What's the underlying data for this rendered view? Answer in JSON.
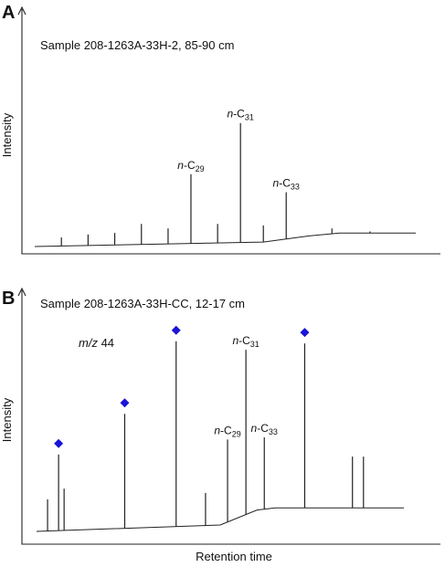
{
  "chart_data": [
    {
      "type": "line",
      "panel": "A",
      "title": "Sample 208-1263A-33H-2, 85-90 cm",
      "ylabel": "Intensity",
      "xlabel": "",
      "grid": false,
      "legend": "none",
      "x_scale": [
        0,
        100
      ],
      "y_scale": [
        0,
        100
      ],
      "peaks": [
        {
          "x": 7,
          "y": 6,
          "label": ""
        },
        {
          "x": 14,
          "y": 8,
          "label": ""
        },
        {
          "x": 21,
          "y": 9,
          "label": ""
        },
        {
          "x": 28,
          "y": 15,
          "label": ""
        },
        {
          "x": 35,
          "y": 12,
          "label": ""
        },
        {
          "x": 41,
          "y": 48,
          "label": "n-C29",
          "label_prefix": "n",
          "label_base": "-C",
          "label_sub": "29"
        },
        {
          "x": 48,
          "y": 15,
          "label": ""
        },
        {
          "x": 54,
          "y": 82,
          "label": "n-C31",
          "label_prefix": "n",
          "label_base": "-C",
          "label_sub": "31"
        },
        {
          "x": 60,
          "y": 14,
          "label": ""
        },
        {
          "x": 66,
          "y": 36,
          "label": "n-C33",
          "label_prefix": "n",
          "label_base": "-C",
          "label_sub": "33"
        },
        {
          "x": 78,
          "y": 12,
          "label": ""
        },
        {
          "x": 88,
          "y": 10,
          "label": ""
        }
      ],
      "baseline": [
        [
          0,
          0
        ],
        [
          60,
          3
        ],
        [
          72,
          7
        ],
        [
          80,
          9
        ],
        [
          100,
          9
        ]
      ]
    },
    {
      "type": "line",
      "panel": "B",
      "title": "Sample 208-1263A-33H-CC, 12-17 cm",
      "annotation": "m/z 44",
      "annotation_italic": "m/z",
      "annotation_rest": " 44",
      "ylabel": "Intensity",
      "xlabel": "Retention time",
      "grid": false,
      "legend": "none",
      "marker_color": "#1a14d6",
      "x_scale": [
        0,
        100
      ],
      "y_scale": [
        0,
        100
      ],
      "peaks": [
        {
          "x": 3,
          "y": 15,
          "label": ""
        },
        {
          "x": 6,
          "y": 36,
          "label": "",
          "marker": true
        },
        {
          "x": 7.5,
          "y": 20,
          "label": ""
        },
        {
          "x": 24,
          "y": 55,
          "label": "",
          "marker": true
        },
        {
          "x": 38,
          "y": 89,
          "label": "",
          "marker": true
        },
        {
          "x": 46,
          "y": 18,
          "label": ""
        },
        {
          "x": 52,
          "y": 43,
          "label": "n-C29",
          "label_prefix": "n",
          "label_base": "-C",
          "label_sub": "29"
        },
        {
          "x": 57,
          "y": 85,
          "label": "n-C31",
          "label_prefix": "n",
          "label_base": "-C",
          "label_sub": "31"
        },
        {
          "x": 62,
          "y": 44,
          "label": "n-C33",
          "label_prefix": "n",
          "label_base": "-C",
          "label_sub": "33"
        },
        {
          "x": 73,
          "y": 88,
          "label": "",
          "marker": true
        },
        {
          "x": 86,
          "y": 35,
          "label": ""
        },
        {
          "x": 89,
          "y": 35,
          "label": ""
        }
      ],
      "baseline": [
        [
          0,
          0
        ],
        [
          50,
          3
        ],
        [
          60,
          10
        ],
        [
          65,
          11
        ],
        [
          80,
          11
        ],
        [
          100,
          11
        ]
      ]
    }
  ]
}
